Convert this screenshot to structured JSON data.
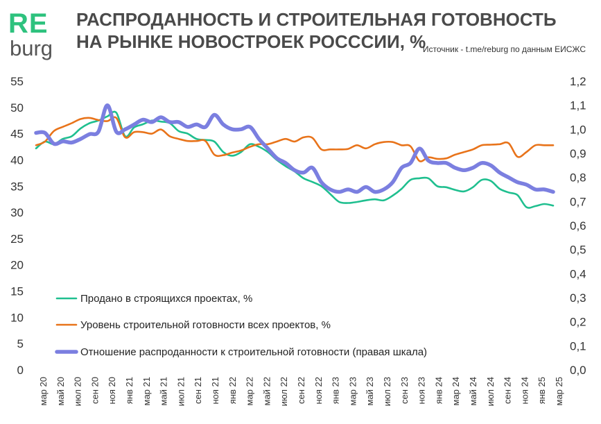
{
  "logo": {
    "top": "RE",
    "bottom": "burg"
  },
  "title": "РАСПРОДАННОСТЬ И СТРОИТЕЛЬНАЯ ГОТОВНОСТЬ НА РЫНКЕ НОВОСТРОЕК РОСССИИ, %",
  "source": "Источник - t.me/reburg по данным ЕИСЖС",
  "chart_data": {
    "type": "line",
    "title": "",
    "xlabel": "",
    "ylabel": "",
    "x_tick_labels": [
      "мар 20",
      "май 20",
      "июл 20",
      "сен 20",
      "ноя 20",
      "янв 21",
      "мар 21",
      "май 21",
      "июл 21",
      "сен 21",
      "ноя 21",
      "янв 22",
      "мар 22",
      "май 22",
      "июл 22",
      "сен 22",
      "ноя 22",
      "янв 23",
      "мар 23",
      "май 23",
      "июл 23",
      "сен 23",
      "ноя 23",
      "янв 24",
      "мар 24",
      "май 24",
      "июл 24",
      "сен 24",
      "ноя 24",
      "янв 25",
      "мар 25"
    ],
    "y_left": {
      "min": 0,
      "max": 55,
      "step": 5,
      "labels": [
        "0",
        "5",
        "10",
        "15",
        "20",
        "25",
        "30",
        "35",
        "40",
        "45",
        "50",
        "55"
      ]
    },
    "y_right": {
      "min": 0,
      "max": 1.2,
      "step": 0.1,
      "labels": [
        "0,0",
        "0,1",
        "0,2",
        "0,3",
        "0,4",
        "0,5",
        "0,6",
        "0,7",
        "0,8",
        "0,9",
        "1,0",
        "1,1",
        "1,2"
      ]
    },
    "grid": false,
    "legend_position": "bottom-left",
    "series": [
      {
        "name": "Продано в строящихся проектах, %",
        "axis": "left",
        "color": "#1fbf8f",
        "values": [
          42.2,
          43.5,
          43,
          44,
          44.5,
          46,
          47,
          47.5,
          48.3,
          49,
          44.5,
          46.2,
          46.8,
          47.5,
          47.3,
          47,
          45.5,
          45,
          44,
          43.8,
          43.5,
          41.5,
          40.8,
          41.5,
          43,
          42.5,
          41.5,
          40,
          38.8,
          37.8,
          36.5,
          35.8,
          35,
          33.5,
          32,
          31.8,
          32,
          32.3,
          32.5,
          32.3,
          33.2,
          34.5,
          36.2,
          36.5,
          36.5,
          35,
          34.8,
          34.3,
          34,
          34.8,
          36.2,
          36,
          34.5,
          33.8,
          33.3,
          31,
          31.2,
          31.6,
          31.3
        ]
      },
      {
        "name": "Уровень строительной готовности всех проектов, %",
        "axis": "left",
        "color": "#e8731a",
        "values": [
          42.8,
          43.5,
          45.5,
          46.3,
          47,
          47.8,
          48,
          47.6,
          47.4,
          48,
          44.3,
          45.3,
          45.3,
          45,
          45.8,
          44.5,
          44,
          43.6,
          43.6,
          43.6,
          41,
          40.9,
          41.4,
          41.8,
          42.5,
          43,
          43,
          43.5,
          44,
          43.5,
          44.3,
          44.2,
          42,
          42,
          42,
          42.1,
          42.8,
          42.2,
          43,
          43.4,
          43.4,
          42.8,
          42.6,
          39.8,
          40.5,
          40.2,
          40.3,
          41,
          41.5,
          42,
          42.8,
          42.9,
          43,
          43.2,
          40.6,
          41.5,
          42.8,
          42.8,
          42.8
        ]
      },
      {
        "name": "Отношение распроданности к строительной готовности (правая шкала)",
        "axis": "right",
        "color": "#7b7fe0",
        "values": [
          0.985,
          0.985,
          0.94,
          0.95,
          0.945,
          0.96,
          0.98,
          0.99,
          1.1,
          0.99,
          1.0,
          1.02,
          1.04,
          1.03,
          1.05,
          1.03,
          1.03,
          1.01,
          1.02,
          1.01,
          1.06,
          1.02,
          1.0,
          1.0,
          1.01,
          0.96,
          0.92,
          0.88,
          0.86,
          0.83,
          0.82,
          0.84,
          0.78,
          0.75,
          0.74,
          0.75,
          0.74,
          0.76,
          0.74,
          0.75,
          0.78,
          0.84,
          0.86,
          0.92,
          0.87,
          0.86,
          0.86,
          0.84,
          0.83,
          0.84,
          0.86,
          0.85,
          0.82,
          0.8,
          0.78,
          0.77,
          0.75,
          0.75,
          0.74
        ]
      }
    ]
  }
}
